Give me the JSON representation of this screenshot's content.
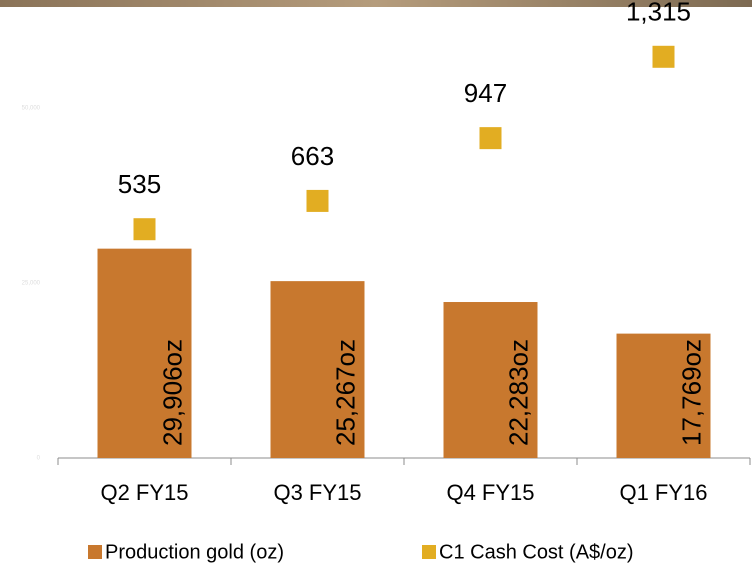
{
  "chart_data": {
    "type": "bar",
    "categories": [
      "Q2 FY15",
      "Q3 FY15",
      "Q4 FY15",
      "Q1 FY16"
    ],
    "series": [
      {
        "name": "Production gold (oz)",
        "type": "bar",
        "color": "#c8782e",
        "values": [
          29906,
          25267,
          22283,
          17769
        ],
        "value_labels": [
          "29,906oz",
          "25,267oz",
          "22,283oz",
          "17,769oz"
        ]
      },
      {
        "name": "C1 Cash Cost (A$/oz)",
        "type": "scatter",
        "axis": "y2",
        "color": "#e2ad22",
        "values": [
          535,
          663,
          947,
          1315
        ],
        "value_labels": [
          "535",
          "663",
          "947",
          "1,315"
        ]
      }
    ],
    "ylim": [
      0,
      60000
    ],
    "yticks": [
      0,
      {
        "value": 25000,
        "label": "25,000"
      },
      {
        "value": 50000,
        "label": "50,000"
      }
    ],
    "y2lim": [
      -500,
      1400
    ],
    "legend": "bottom"
  }
}
